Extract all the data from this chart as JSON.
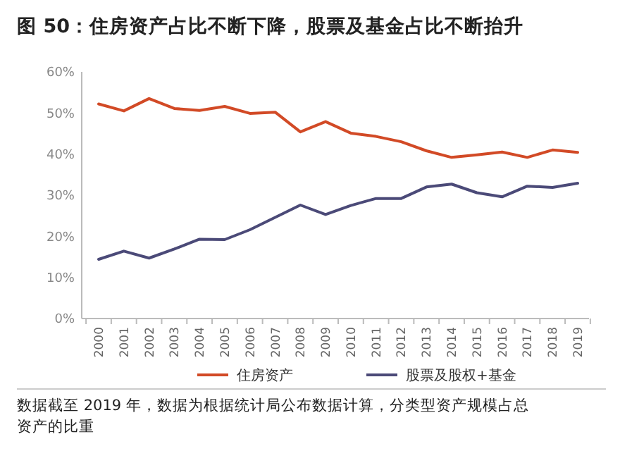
{
  "chart_data": {
    "type": "line",
    "title": "图 50：住房资产占比不断下降，股票及基金占比不断抬升",
    "categories": [
      "2000",
      "2001",
      "2002",
      "2003",
      "2004",
      "2005",
      "2006",
      "2007",
      "2008",
      "2009",
      "2010",
      "2011",
      "2012",
      "2013",
      "2014",
      "2015",
      "2016",
      "2017",
      "2018",
      "2019"
    ],
    "series": [
      {
        "name": "住房资产",
        "color": "#d24a26",
        "values": [
          52.2,
          50.5,
          53.5,
          51.1,
          50.6,
          51.6,
          49.9,
          50.2,
          45.4,
          47.9,
          45.1,
          44.3,
          43.0,
          40.8,
          39.2,
          39.8,
          40.5,
          39.2,
          41.0,
          40.4
        ]
      },
      {
        "name": "股票及股权+基金",
        "color": "#4b4a78",
        "values": [
          14.4,
          16.4,
          14.7,
          16.9,
          19.3,
          19.2,
          21.6,
          24.6,
          27.6,
          25.3,
          27.5,
          29.2,
          29.2,
          32.0,
          32.7,
          30.6,
          29.6,
          32.2,
          31.9,
          32.9
        ]
      }
    ],
    "ylim": [
      0,
      60
    ],
    "yticks": [
      {
        "value": 0,
        "label": "0%"
      },
      {
        "value": 10,
        "label": "10%"
      },
      {
        "value": 20,
        "label": "20%"
      },
      {
        "value": 30,
        "label": "30%"
      },
      {
        "value": 40,
        "label": "40%"
      },
      {
        "value": 50,
        "label": "50%"
      },
      {
        "value": 60,
        "label": "60%"
      }
    ],
    "legend": "bottom",
    "annotations": [
      "数据截至 2019 年，数据为根据统计局公布数据计算，分类型资产规模占总资产的比重"
    ]
  }
}
